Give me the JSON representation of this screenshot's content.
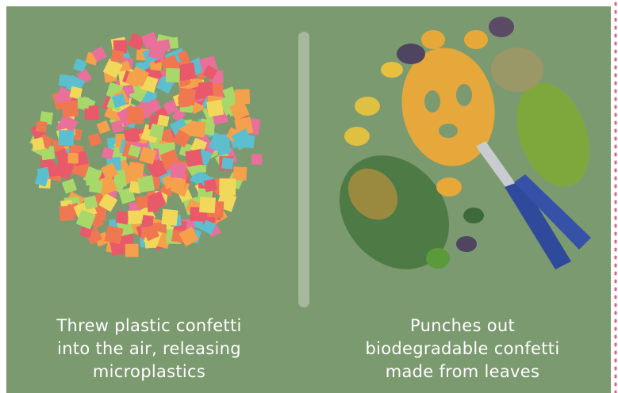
{
  "left": {
    "caption": [
      "Threw plastic confetti",
      "into the air, releasing",
      "microplastics"
    ]
  },
  "right": {
    "caption": [
      "Punches out",
      "biodegradable confetti",
      "made from leaves"
    ]
  }
}
